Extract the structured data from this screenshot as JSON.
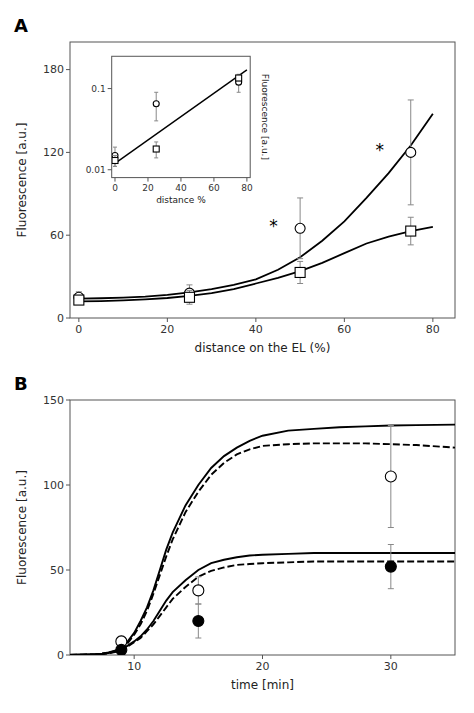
{
  "chart_data": [
    {
      "type": "line",
      "title": "A",
      "xlabel": "distance on the EL (%)",
      "ylabel": "Fluorescence [a.u.]",
      "xlim": [
        -2,
        85
      ],
      "ylim": [
        0,
        200
      ],
      "xticks": [
        0,
        20,
        40,
        60,
        80
      ],
      "yticks": [
        0,
        60,
        120,
        180
      ],
      "grid": false,
      "series": [
        {
          "type": "line",
          "line_style": "solid",
          "color": "#000000",
          "x": [
            0,
            5,
            10,
            15,
            20,
            25,
            30,
            35,
            40,
            45,
            50,
            55,
            60,
            65,
            70,
            75,
            80
          ],
          "values": [
            14,
            14.3,
            14.8,
            15.5,
            16.8,
            18.5,
            21,
            24,
            28,
            35,
            44,
            56,
            70,
            87,
            105,
            125,
            148
          ]
        },
        {
          "type": "line",
          "line_style": "solid",
          "color": "#000000",
          "x": [
            0,
            5,
            10,
            15,
            20,
            25,
            30,
            35,
            40,
            45,
            50,
            55,
            60,
            65,
            70,
            75,
            80
          ],
          "values": [
            12,
            12.3,
            12.8,
            13.5,
            14.5,
            16,
            18,
            21,
            25,
            29,
            34,
            40,
            47,
            54,
            59,
            63,
            66
          ]
        },
        {
          "type": "scatter",
          "marker": "open-circle",
          "color": "#000000",
          "x": [
            0,
            25,
            50,
            75
          ],
          "values": [
            15,
            18,
            65,
            120
          ],
          "errors": [
            4,
            6,
            22,
            38
          ]
        },
        {
          "type": "scatter",
          "marker": "open-square",
          "color": "#000000",
          "x": [
            0,
            25,
            50,
            75
          ],
          "values": [
            13,
            15,
            33,
            63
          ],
          "errors": [
            2,
            5,
            8,
            10
          ]
        }
      ],
      "annotations": [
        {
          "text": "*",
          "x": 44,
          "y": 67
        },
        {
          "text": "*",
          "x": 68,
          "y": 122
        }
      ]
    },
    {
      "type": "scatter",
      "xlabel": "distance %",
      "ylabel": "Fluorescence [a.u.]",
      "log": "y",
      "xlim": [
        -2,
        82
      ],
      "ylim": [
        0.008,
        0.25
      ],
      "xticks": [
        0,
        20,
        40,
        60,
        80
      ],
      "yticks": [
        0.01,
        0.1
      ],
      "grid": false,
      "series": [
        {
          "type": "line",
          "line_style": "solid",
          "color": "#000000",
          "x": [
            0,
            80
          ],
          "values": [
            0.012,
            0.17
          ]
        },
        {
          "type": "scatter",
          "marker": "open-circle",
          "color": "#000000",
          "x": [
            0,
            25,
            75
          ],
          "values": [
            0.015,
            0.065,
            0.12
          ],
          "errors": [
            0.004,
            0.025,
            0.03
          ]
        },
        {
          "type": "scatter",
          "marker": "open-square",
          "color": "#000000",
          "x": [
            0,
            25,
            75
          ],
          "values": [
            0.013,
            0.018,
            0.135
          ],
          "errors": [
            0.002,
            0.004,
            0.01
          ]
        }
      ]
    },
    {
      "type": "line",
      "title": "B",
      "xlabel": "time [min]",
      "ylabel": "Fluorescence [a.u.]",
      "xlim": [
        5,
        35
      ],
      "ylim": [
        0,
        150
      ],
      "xticks": [
        10,
        20,
        30
      ],
      "yticks": [
        0,
        50,
        100,
        150
      ],
      "grid": false,
      "series": [
        {
          "type": "line",
          "line_style": "solid",
          "color": "#000000",
          "x": [
            5,
            6,
            7,
            7.5,
            8,
            8.5,
            9,
            9.5,
            10,
            10.5,
            11,
            11.5,
            12,
            12.5,
            13,
            14,
            15,
            16,
            17,
            18,
            19,
            20,
            22,
            24,
            26,
            28,
            30,
            32,
            35
          ],
          "values": [
            0.2,
            0.3,
            0.5,
            0.8,
            1.5,
            2.5,
            4.5,
            8,
            13,
            20,
            28,
            38,
            50,
            62,
            72,
            88,
            100,
            110,
            117,
            122,
            126,
            129,
            132,
            133,
            134,
            134.5,
            135,
            135.2,
            135.5
          ]
        },
        {
          "type": "line",
          "line_style": "dashed",
          "color": "#000000",
          "x": [
            5,
            6,
            7,
            7.5,
            8,
            8.5,
            9,
            9.5,
            10,
            10.5,
            11,
            11.5,
            12,
            12.5,
            13,
            14,
            15,
            16,
            17,
            18,
            19,
            20,
            22,
            24,
            26,
            28,
            30,
            32,
            35
          ],
          "values": [
            0.1,
            0.2,
            0.4,
            0.7,
            1.3,
            2.2,
            4.0,
            7,
            12,
            18,
            26,
            36,
            47,
            58,
            68,
            84,
            96,
            106,
            113,
            118,
            121,
            123,
            124,
            124.5,
            124.5,
            124.5,
            124,
            123.5,
            122
          ]
        },
        {
          "type": "line",
          "line_style": "solid",
          "color": "#000000",
          "x": [
            5,
            6,
            7,
            7.5,
            8,
            8.5,
            9,
            9.5,
            10,
            10.5,
            11,
            11.5,
            12,
            12.5,
            13,
            14,
            15,
            16,
            17,
            18,
            19,
            20,
            22,
            24,
            26,
            28,
            30,
            32,
            35
          ],
          "values": [
            0.1,
            0.2,
            0.4,
            0.7,
            1.2,
            2,
            3.5,
            5.5,
            8,
            11,
            15,
            20,
            26,
            32,
            37,
            44,
            50,
            54,
            56,
            57.5,
            58.5,
            59,
            59.5,
            60,
            60,
            60,
            60,
            60,
            60
          ]
        },
        {
          "type": "line",
          "line_style": "dashed",
          "color": "#000000",
          "x": [
            5,
            6,
            7,
            7.5,
            8,
            8.5,
            9,
            9.5,
            10,
            10.5,
            11,
            11.5,
            12,
            12.5,
            13,
            14,
            15,
            16,
            17,
            18,
            19,
            20,
            22,
            24,
            26,
            28,
            30,
            32,
            35
          ],
          "values": [
            0.05,
            0.1,
            0.3,
            0.6,
            1.0,
            1.7,
            3.0,
            5.0,
            7.5,
            10,
            14,
            18,
            23,
            28,
            33,
            40,
            46,
            49.5,
            51.5,
            53,
            53.5,
            54,
            54.5,
            55,
            55,
            55,
            55,
            55,
            55
          ]
        },
        {
          "type": "scatter",
          "marker": "open-circle",
          "color": "#000000",
          "x": [
            9,
            15,
            30
          ],
          "values": [
            8,
            38,
            105
          ],
          "errors": [
            3,
            8,
            30
          ]
        },
        {
          "type": "scatter",
          "marker": "filled-circle",
          "color": "#000000",
          "x": [
            9,
            15,
            30
          ],
          "values": [
            3,
            20,
            52
          ],
          "errors": [
            1,
            10,
            13
          ]
        }
      ]
    }
  ]
}
